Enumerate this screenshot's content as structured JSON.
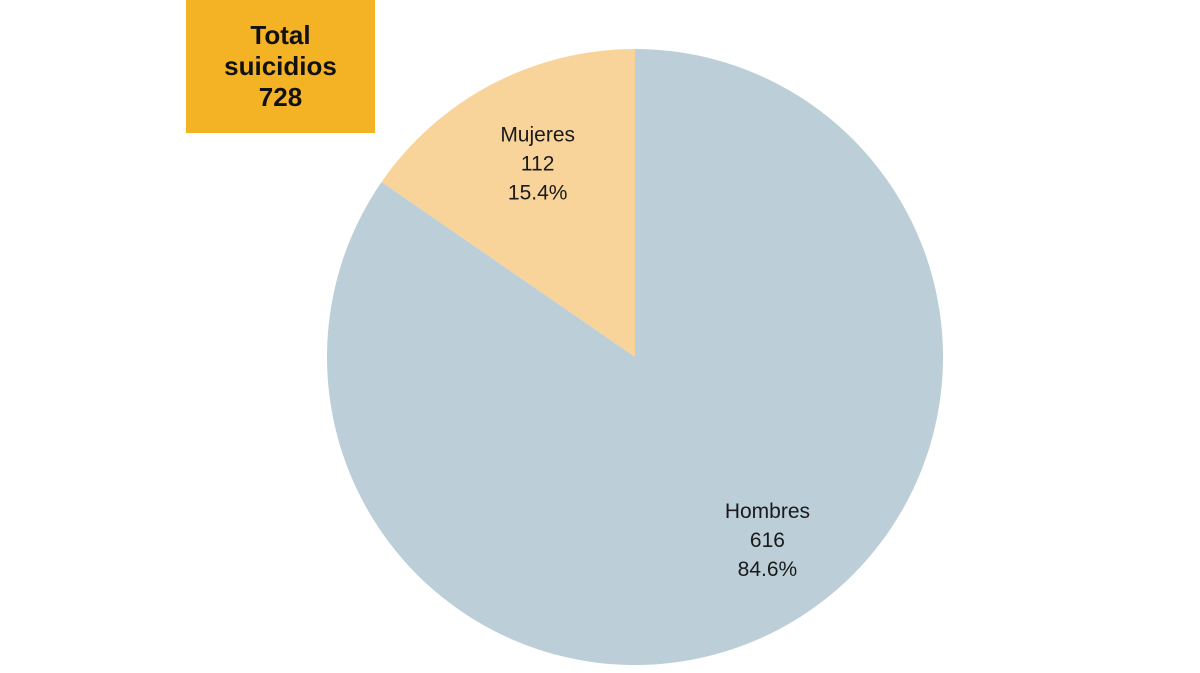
{
  "total_box": {
    "line1": "Total",
    "line2": "suicidios",
    "value": "728"
  },
  "chart_data": {
    "type": "pie",
    "slices": [
      {
        "label": "Mujeres",
        "value": 112,
        "percent_text": "15.4%",
        "color": "#f8d49a"
      },
      {
        "label": "Hombres",
        "value": 616,
        "percent_text": "84.6%",
        "color": "#bccfd8"
      }
    ],
    "total": 728
  }
}
